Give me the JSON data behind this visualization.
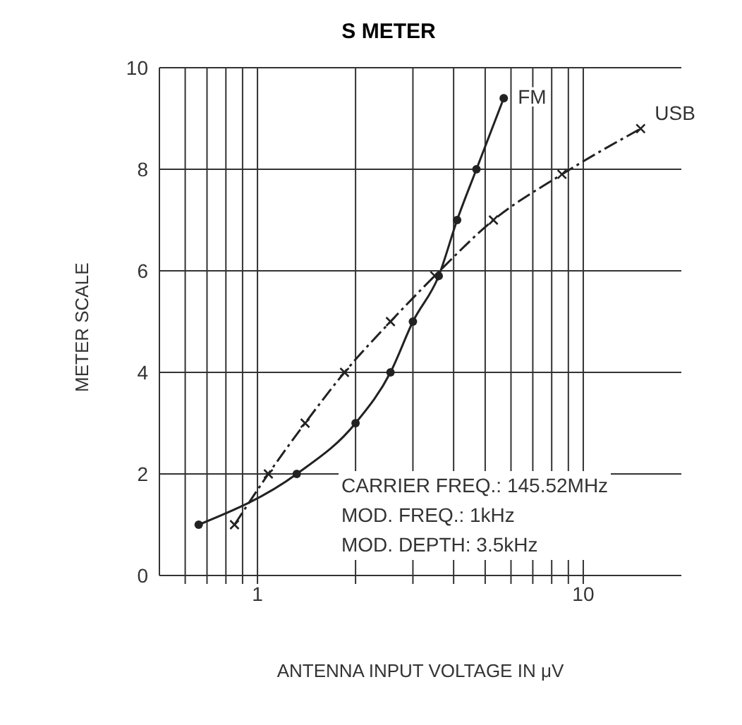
{
  "chart_data": {
    "type": "line",
    "title": "S METER",
    "xlabel": "ANTENNA INPUT VOLTAGE IN μV",
    "ylabel": "METER SCALE",
    "log": "x",
    "grid": true,
    "legend": false,
    "xlim": [
      0.5,
      20
    ],
    "xticks": [
      {
        "value": 0.6,
        "label": null
      },
      {
        "value": 0.7,
        "label": null
      },
      {
        "value": 0.8,
        "label": null
      },
      {
        "value": 0.9,
        "label": null
      },
      1,
      {
        "value": 2,
        "label": null
      },
      {
        "value": 3,
        "label": null
      },
      {
        "value": 4,
        "label": null
      },
      {
        "value": 5,
        "label": null
      },
      {
        "value": 6,
        "label": null
      },
      {
        "value": 7,
        "label": null
      },
      {
        "value": 8,
        "label": null
      },
      {
        "value": 9,
        "label": null
      },
      10
    ],
    "ylim": [
      0,
      10
    ],
    "yticks": [
      0,
      2,
      4,
      6,
      8,
      10
    ],
    "series": [
      {
        "name": "FM",
        "color": "#222222",
        "marker": "circle",
        "line_style": "solid",
        "x": [
          0.66,
          1.32,
          2.0,
          2.56,
          3.0,
          3.6,
          4.1,
          4.7,
          5.7
        ],
        "values": [
          1,
          2,
          3,
          4,
          5,
          5.9,
          7,
          8,
          9.4
        ]
      },
      {
        "name": "USB",
        "color": "#222222",
        "marker": "cross",
        "line_style": "dashed",
        "x": [
          0.85,
          1.08,
          1.4,
          1.85,
          2.56,
          3.5,
          5.3,
          8.6,
          15
        ],
        "values": [
          1,
          2,
          3,
          4,
          5,
          5.9,
          7,
          7.9,
          8.8
        ]
      }
    ],
    "annotations": [
      "CARRIER FREQ.: 145.52MHz",
      "MOD. FREQ.: 1kHz",
      "MOD. DEPTH: 3.5kHz"
    ]
  }
}
